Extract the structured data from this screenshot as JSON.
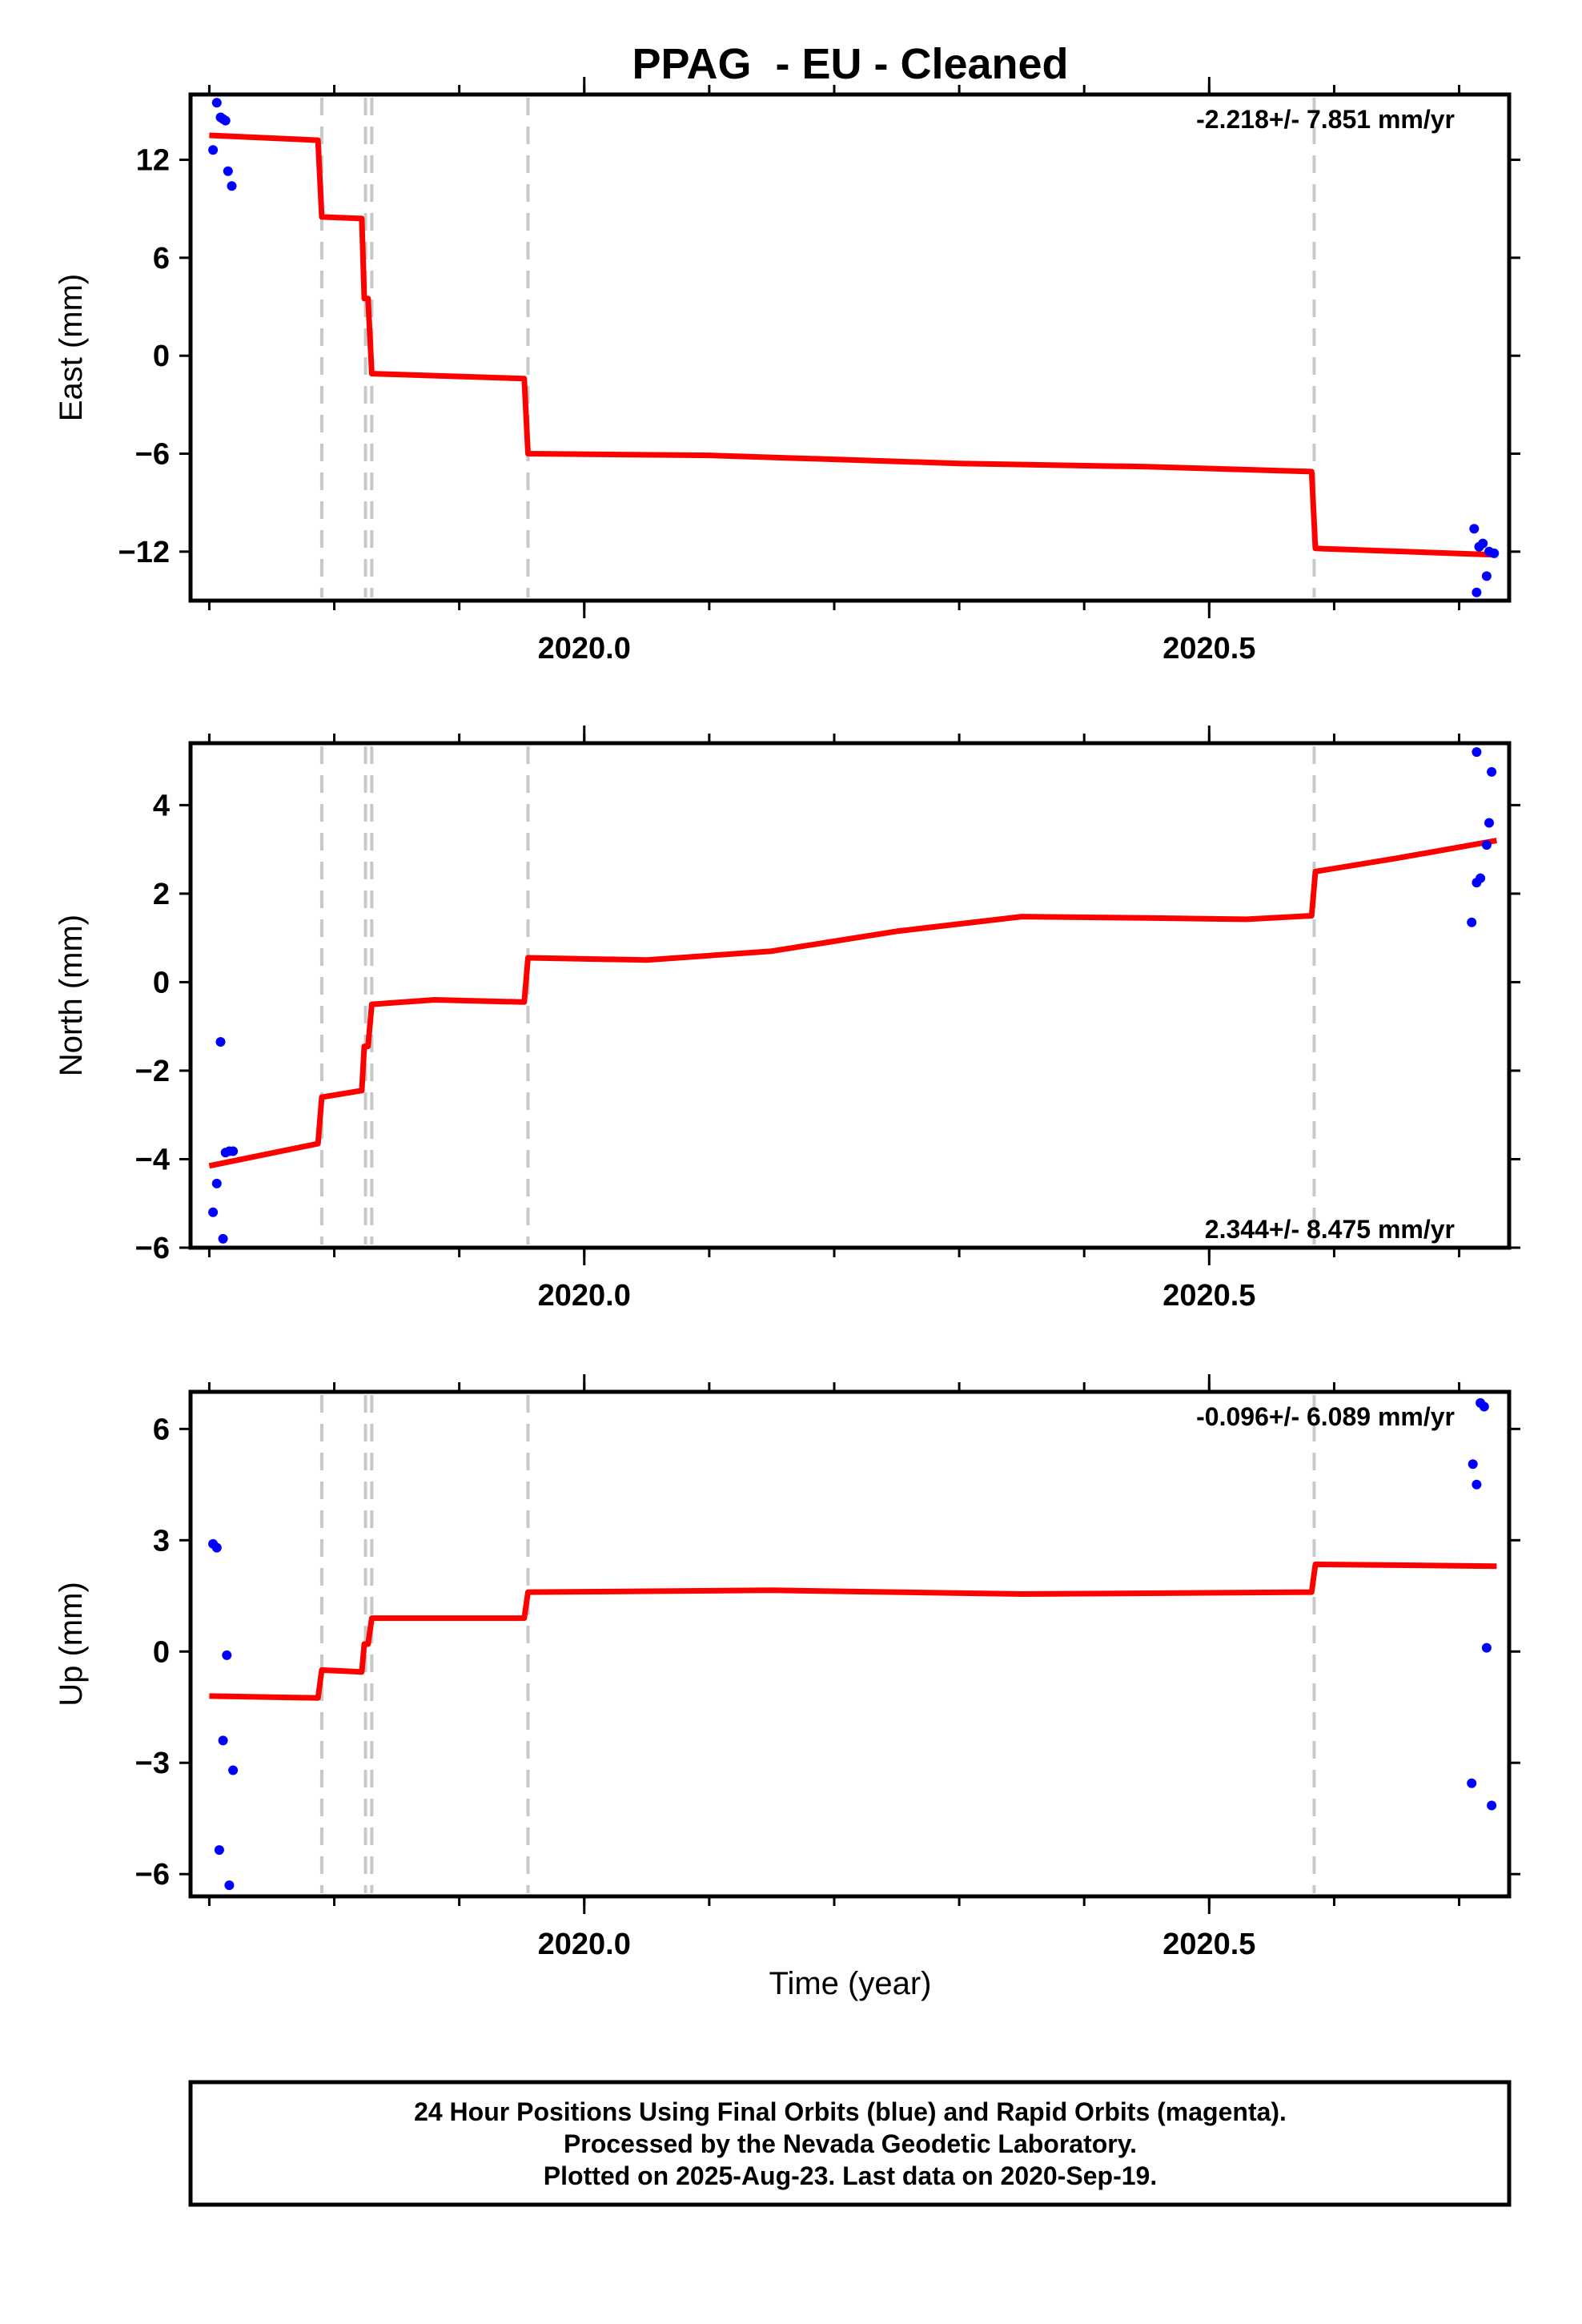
{
  "chart_title": "PPAG  - EU - Cleaned",
  "x_axis_label": "Time (year)",
  "footer": [
    "24 Hour Positions Using Final Orbits (blue) and Rapid Orbits (magenta).",
    "Processed by the Nevada Geodetic Laboratory.",
    "Plotted on 2025-Aug-23. Last data on 2020-Sep-19."
  ],
  "colors": {
    "points": "#0000ff",
    "model": "#ff0000",
    "breaks": "#c8c8c8",
    "axes": "#000000"
  },
  "chart_data": [
    {
      "type": "scatter",
      "ylabel": "East (mm)",
      "rate_label": "-2.218+/- 7.851 mm/yr",
      "rate_position": "top-right",
      "xlim": [
        2019.685,
        2020.74
      ],
      "ylim": [
        -15,
        16
      ],
      "xticks": [
        2020.0,
        2020.5
      ],
      "xtick_labels": [
        "2020.0",
        "2020.5"
      ],
      "x_minor_step": 0.1,
      "yticks": [
        -12,
        -6,
        0,
        6,
        12
      ],
      "ytick_labels": [
        "−12",
        "−6",
        "0",
        "6",
        "12"
      ],
      "grid": false,
      "break_times": [
        2019.79,
        2019.825,
        2019.83,
        2019.955,
        2020.584
      ],
      "points": [
        [
          2019.706,
          15.5
        ],
        [
          2019.709,
          14.6
        ],
        [
          2019.711,
          14.5
        ],
        [
          2019.713,
          14.4
        ],
        [
          2019.703,
          12.6
        ],
        [
          2019.715,
          11.3
        ],
        [
          2019.718,
          10.4
        ],
        [
          2020.712,
          -10.6
        ],
        [
          2020.716,
          -11.7
        ],
        [
          2020.719,
          -11.5
        ],
        [
          2020.724,
          -12.0
        ],
        [
          2020.728,
          -12.1
        ],
        [
          2020.722,
          -13.5
        ],
        [
          2020.714,
          -14.5
        ]
      ],
      "model": [
        [
          2019.7,
          13.5
        ],
        [
          2019.787,
          13.2
        ],
        [
          2019.79,
          8.5
        ],
        [
          2019.822,
          8.4
        ],
        [
          2019.824,
          3.5
        ],
        [
          2019.827,
          3.5
        ],
        [
          2019.83,
          -1.1
        ],
        [
          2019.952,
          -1.4
        ],
        [
          2019.955,
          -6.0
        ],
        [
          2020.1,
          -6.1
        ],
        [
          2020.3,
          -6.6
        ],
        [
          2020.45,
          -6.8
        ],
        [
          2020.582,
          -7.1
        ],
        [
          2020.585,
          -11.8
        ],
        [
          2020.73,
          -12.2
        ]
      ]
    },
    {
      "type": "scatter",
      "ylabel": "North (mm)",
      "rate_label": "2.344+/- 8.475 mm/yr",
      "rate_position": "bottom-right",
      "xlim": [
        2019.685,
        2020.74
      ],
      "ylim": [
        -6,
        5.4
      ],
      "xticks": [
        2020.0,
        2020.5
      ],
      "xtick_labels": [
        "2020.0",
        "2020.5"
      ],
      "x_minor_step": 0.1,
      "yticks": [
        -6,
        -4,
        -2,
        0,
        2,
        4
      ],
      "ytick_labels": [
        "−6",
        "−4",
        "−2",
        "0",
        "2",
        "4"
      ],
      "grid": false,
      "break_times": [
        2019.79,
        2019.825,
        2019.83,
        2019.955,
        2020.584
      ],
      "points": [
        [
          2019.709,
          -1.35
        ],
        [
          2019.713,
          -3.85
        ],
        [
          2019.716,
          -3.82
        ],
        [
          2019.719,
          -3.82
        ],
        [
          2019.706,
          -4.55
        ],
        [
          2019.703,
          -5.2
        ],
        [
          2019.711,
          -5.8
        ],
        [
          2020.714,
          5.2
        ],
        [
          2020.726,
          4.75
        ],
        [
          2020.724,
          3.6
        ],
        [
          2020.722,
          3.1
        ],
        [
          2020.717,
          2.35
        ],
        [
          2020.714,
          2.25
        ],
        [
          2020.71,
          1.35
        ]
      ],
      "model": [
        [
          2019.7,
          -4.15
        ],
        [
          2019.787,
          -3.65
        ],
        [
          2019.79,
          -2.6
        ],
        [
          2019.822,
          -2.45
        ],
        [
          2019.824,
          -1.45
        ],
        [
          2019.827,
          -1.45
        ],
        [
          2019.83,
          -0.5
        ],
        [
          2019.88,
          -0.4
        ],
        [
          2019.952,
          -0.45
        ],
        [
          2019.955,
          0.55
        ],
        [
          2020.05,
          0.5
        ],
        [
          2020.15,
          0.7
        ],
        [
          2020.25,
          1.15
        ],
        [
          2020.35,
          1.48
        ],
        [
          2020.45,
          1.45
        ],
        [
          2020.53,
          1.42
        ],
        [
          2020.582,
          1.5
        ],
        [
          2020.585,
          2.5
        ],
        [
          2020.65,
          2.8
        ],
        [
          2020.73,
          3.2
        ]
      ]
    },
    {
      "type": "scatter",
      "ylabel": "Up (mm)",
      "rate_label": "-0.096+/- 6.089 mm/yr",
      "rate_position": "top-right",
      "xlim": [
        2019.685,
        2020.74
      ],
      "ylim": [
        -6.6,
        7
      ],
      "xticks": [
        2020.0,
        2020.5
      ],
      "xtick_labels": [
        "2020.0",
        "2020.5"
      ],
      "x_minor_step": 0.1,
      "yticks": [
        -6,
        -3,
        0,
        3,
        6
      ],
      "ytick_labels": [
        "−6",
        "−3",
        "0",
        "3",
        "6"
      ],
      "grid": false,
      "break_times": [
        2019.79,
        2019.825,
        2019.83,
        2019.955,
        2020.584
      ],
      "points": [
        [
          2019.703,
          2.9
        ],
        [
          2019.706,
          2.8
        ],
        [
          2019.714,
          -0.1
        ],
        [
          2019.711,
          -2.4
        ],
        [
          2019.719,
          -3.2
        ],
        [
          2019.708,
          -5.35
        ],
        [
          2019.716,
          -6.3
        ],
        [
          2020.717,
          6.7
        ],
        [
          2020.72,
          6.6
        ],
        [
          2020.711,
          5.05
        ],
        [
          2020.714,
          4.5
        ],
        [
          2020.722,
          0.1
        ],
        [
          2020.71,
          -3.55
        ],
        [
          2020.726,
          -4.15
        ]
      ],
      "model": [
        [
          2019.7,
          -1.2
        ],
        [
          2019.787,
          -1.25
        ],
        [
          2019.79,
          -0.5
        ],
        [
          2019.822,
          -0.55
        ],
        [
          2019.824,
          0.2
        ],
        [
          2019.827,
          0.2
        ],
        [
          2019.83,
          0.9
        ],
        [
          2019.952,
          0.9
        ],
        [
          2019.955,
          1.6
        ],
        [
          2020.15,
          1.65
        ],
        [
          2020.35,
          1.55
        ],
        [
          2020.582,
          1.6
        ],
        [
          2020.585,
          2.35
        ],
        [
          2020.73,
          2.3
        ]
      ]
    }
  ]
}
